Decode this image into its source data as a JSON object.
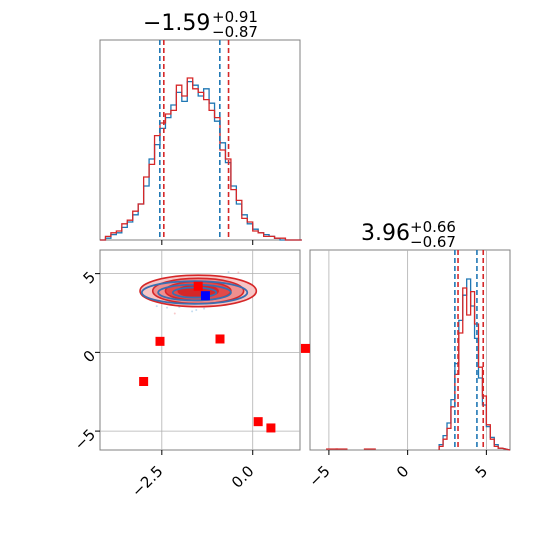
{
  "chart_data": [
    {
      "type": "histogram",
      "panel": "x-marginal",
      "title_value": "−1.59",
      "title_sup": "+0.91",
      "title_sub": "−0.87",
      "xlim": [
        -4.2,
        1.3
      ],
      "quantiles_red": [
        -2.5,
        -0.72
      ],
      "quantiles_blue": [
        -2.5,
        -0.85
      ],
      "bins_x": [
        -4.2,
        -4.05,
        -3.9,
        -3.75,
        -3.6,
        -3.45,
        -3.3,
        -3.15,
        -3.0,
        -2.85,
        -2.7,
        -2.55,
        -2.4,
        -2.25,
        -2.1,
        -1.95,
        -1.8,
        -1.65,
        -1.5,
        -1.35,
        -1.2,
        -1.05,
        -0.9,
        -0.75,
        -0.6,
        -0.45,
        -0.3,
        -0.15,
        0.0,
        0.15,
        0.3,
        0.45,
        0.6,
        0.75,
        0.9,
        1.05,
        1.2
      ],
      "series": [
        {
          "color": "#1f77b4",
          "counts": [
            0,
            0.01,
            0.03,
            0.04,
            0.07,
            0.1,
            0.14,
            0.2,
            0.3,
            0.45,
            0.53,
            0.62,
            0.68,
            0.75,
            0.82,
            0.77,
            0.88,
            0.86,
            0.8,
            0.84,
            0.76,
            0.66,
            0.54,
            0.43,
            0.3,
            0.2,
            0.14,
            0.09,
            0.06,
            0.04,
            0.03,
            0.02,
            0.01,
            0,
            0,
            0,
            0
          ]
        },
        {
          "color": "#d62728",
          "counts": [
            0,
            0.02,
            0.04,
            0.05,
            0.09,
            0.11,
            0.16,
            0.2,
            0.35,
            0.42,
            0.58,
            0.65,
            0.7,
            0.72,
            0.86,
            0.8,
            0.9,
            0.84,
            0.82,
            0.78,
            0.72,
            0.68,
            0.5,
            0.45,
            0.28,
            0.22,
            0.12,
            0.1,
            0.05,
            0.04,
            0.02,
            0.02,
            0.01,
            0.01,
            0,
            0,
            0
          ]
        }
      ]
    },
    {
      "type": "scatter",
      "panel": "joint",
      "xlim": [
        -4.2,
        1.3
      ],
      "ylim": [
        -6.2,
        6.5
      ],
      "xticks": [
        "−2.5",
        "0.0"
      ],
      "xtick_values": [
        -2.5,
        0.0
      ],
      "yticks": [
        "5",
        "0",
        "−5"
      ],
      "ytick_values": [
        5,
        0,
        -5
      ],
      "red_squares": [
        [
          -1.5,
          4.2
        ],
        [
          -2.55,
          0.7
        ],
        [
          -3.0,
          -1.85
        ],
        [
          -0.9,
          0.85
        ],
        [
          0.15,
          -4.4
        ],
        [
          0.5,
          -4.8
        ],
        [
          1.45,
          0.25
        ]
      ],
      "blue_squares": [
        [
          -1.3,
          3.6
        ]
      ],
      "contour_center": [
        -1.5,
        3.9
      ]
    },
    {
      "type": "histogram",
      "panel": "y-marginal",
      "title_value": "3.96",
      "title_sup": "+0.66",
      "title_sub": "−0.67",
      "xlim": [
        -6.2,
        6.5
      ],
      "xticks": [
        "−5",
        "0",
        "5"
      ],
      "xtick_values": [
        -5,
        0,
        5
      ],
      "quantiles_red": [
        3.2,
        4.8
      ],
      "quantiles_blue": [
        3.0,
        4.4
      ],
      "bins_x": [
        2.0,
        2.25,
        2.5,
        2.75,
        3.0,
        3.25,
        3.5,
        3.75,
        4.0,
        4.25,
        4.5,
        4.75,
        5.0,
        5.25,
        5.5,
        5.75,
        6.0
      ],
      "series": [
        {
          "color": "#1f77b4",
          "counts": [
            0.03,
            0.08,
            0.15,
            0.28,
            0.48,
            0.72,
            0.86,
            0.95,
            0.8,
            0.62,
            0.4,
            0.25,
            0.13,
            0.07,
            0.03,
            0.01
          ]
        },
        {
          "color": "#d62728",
          "counts": [
            0.02,
            0.06,
            0.12,
            0.24,
            0.42,
            0.65,
            0.9,
            0.75,
            0.88,
            0.7,
            0.46,
            0.3,
            0.14,
            0.06,
            0.02,
            0.01
          ]
        }
      ],
      "outliers_red": [
        -4.8,
        -4.2,
        -2.4
      ]
    }
  ]
}
